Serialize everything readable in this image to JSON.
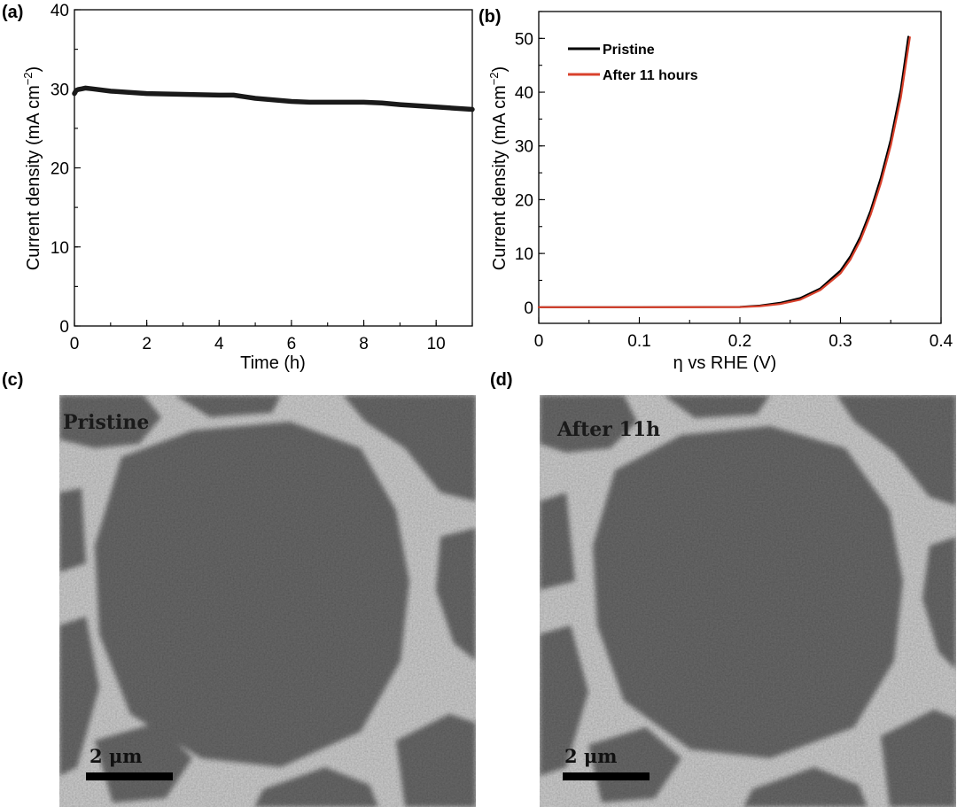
{
  "panels": {
    "a": "(a)",
    "b": "(b)",
    "c": "(c)",
    "d": "(d)"
  },
  "chart_data": [
    {
      "type": "line",
      "panel": "(a)",
      "xlabel": "Time (h)",
      "ylabel_main": "Current density (mA cm",
      "ylabel_sup": "−2",
      "ylabel_close": ")",
      "xlim": [
        0,
        11
      ],
      "ylim": [
        0,
        40
      ],
      "xticks": [
        0,
        2,
        4,
        6,
        8,
        10
      ],
      "yticks": [
        0,
        10,
        20,
        30,
        40
      ],
      "grid": false,
      "color": "#1a1a1a",
      "series": [
        {
          "x": [
            0,
            0.05,
            0.1,
            0.2,
            0.3,
            0.5,
            1.0,
            2.0,
            3.0,
            4.0,
            4.4,
            4.7,
            5.0,
            5.5,
            6.0,
            6.5,
            7.0,
            8.0,
            8.5,
            9.0,
            10.0,
            11.0
          ],
          "y": [
            29.4,
            29.8,
            29.9,
            30.0,
            30.1,
            30.0,
            29.7,
            29.4,
            29.3,
            29.2,
            29.2,
            29.0,
            28.8,
            28.6,
            28.4,
            28.3,
            28.3,
            28.3,
            28.2,
            28.0,
            27.7,
            27.4
          ]
        }
      ]
    },
    {
      "type": "line",
      "panel": "(b)",
      "xlabel": "η vs RHE (V)",
      "ylabel_main": "Current density (mA cm",
      "ylabel_sup": "−2",
      "ylabel_close": ")",
      "xlim": [
        0,
        0.4
      ],
      "ylim": [
        -3,
        55
      ],
      "xticks": [
        0,
        0.1,
        0.2,
        0.3,
        0.4
      ],
      "xticklabels": [
        "0",
        "0.1",
        "0.2",
        "0.3",
        "0.4"
      ],
      "yticks": [
        0,
        10,
        20,
        30,
        40,
        50
      ],
      "grid": false,
      "legend_position": "top-left",
      "series": [
        {
          "name": "Pristine",
          "color": "#000000",
          "x": [
            0,
            0.1,
            0.2,
            0.22,
            0.24,
            0.26,
            0.28,
            0.3,
            0.31,
            0.32,
            0.33,
            0.34,
            0.35,
            0.36,
            0.3675
          ],
          "y": [
            0,
            0,
            0.05,
            0.3,
            0.8,
            1.7,
            3.5,
            6.8,
            9.5,
            13.2,
            18.0,
            24.0,
            31.2,
            40.5,
            50.3
          ]
        },
        {
          "name": "After 11 hours",
          "color": "#d9412c",
          "x": [
            0,
            0.1,
            0.2,
            0.22,
            0.24,
            0.26,
            0.28,
            0.3,
            0.31,
            0.32,
            0.33,
            0.34,
            0.35,
            0.36,
            0.369
          ],
          "y": [
            0,
            0,
            0.02,
            0.2,
            0.6,
            1.4,
            3.2,
            6.3,
            8.9,
            12.5,
            17.2,
            23.0,
            30.1,
            39.0,
            50.2
          ]
        }
      ]
    }
  ],
  "images": [
    {
      "panel": "(c)",
      "label": "Pristine",
      "scale_bar": "2 μm"
    },
    {
      "panel": "(d)",
      "label": "After 11h",
      "scale_bar": "2 μm"
    }
  ]
}
